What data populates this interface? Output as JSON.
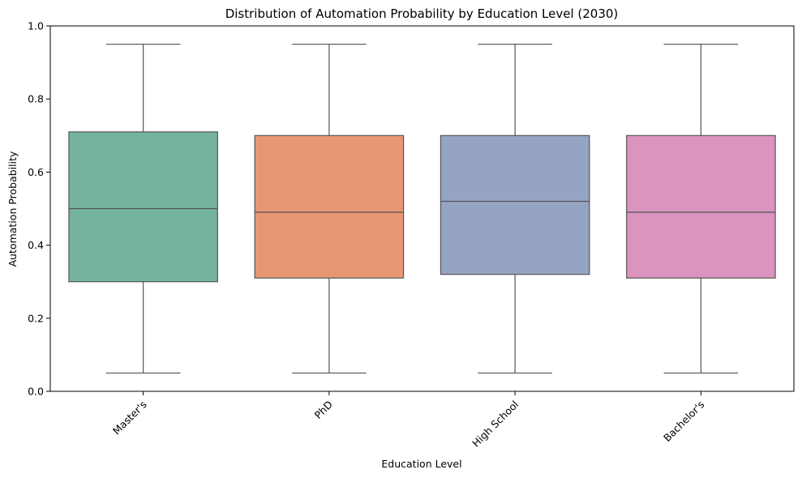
{
  "chart_data": {
    "type": "box",
    "title": "Distribution of Automation Probability by Education Level (2030)",
    "xlabel": "Education Level",
    "ylabel": "Automation Probability",
    "ylim": [
      0,
      1.0
    ],
    "yticks": [
      "0.0",
      "0.2",
      "0.4",
      "0.6",
      "0.8",
      "1.0"
    ],
    "grid": false,
    "categories": [
      "Master's",
      "PhD",
      "High School",
      "Bachelor's"
    ],
    "boxes": [
      {
        "category": "Master's",
        "whisker_low": 0.05,
        "q1": 0.3,
        "median": 0.5,
        "q3": 0.71,
        "whisker_high": 0.95,
        "color": "#73b3a0"
      },
      {
        "category": "PhD",
        "whisker_low": 0.05,
        "q1": 0.31,
        "median": 0.49,
        "q3": 0.7,
        "whisker_high": 0.95,
        "color": "#e89774"
      },
      {
        "category": "High School",
        "whisker_low": 0.05,
        "q1": 0.32,
        "median": 0.52,
        "q3": 0.7,
        "whisker_high": 0.95,
        "color": "#95a4c2"
      },
      {
        "category": "Bachelor's",
        "whisker_low": 0.05,
        "q1": 0.31,
        "median": 0.49,
        "q3": 0.7,
        "whisker_high": 0.95,
        "color": "#da94bf"
      }
    ],
    "line_color": "#555555"
  }
}
